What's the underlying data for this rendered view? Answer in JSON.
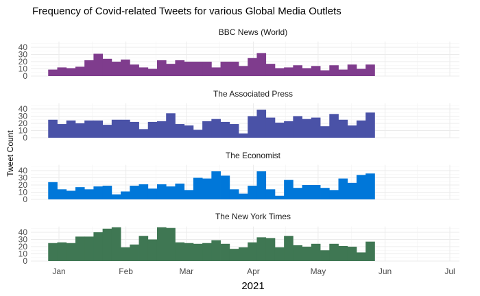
{
  "chart_data": {
    "type": "bar",
    "title": "Frequency of Covid-related Tweets for various Global Media Outlets",
    "xlabel": "2021",
    "ylabel": "Tweet Count",
    "x_ticks": [
      "Jan",
      "Feb",
      "Mar",
      "Apr",
      "May",
      "Jun",
      "Jul"
    ],
    "y_ticks": [
      0,
      10,
      20,
      30,
      40
    ],
    "ylim": [
      0,
      48
    ],
    "grid": true,
    "legend": "none",
    "x_start": "2020-12-27",
    "bin_days": 4.2,
    "panels": [
      {
        "name": "BBC News (World)",
        "color": "#7f3c8d",
        "values": [
          9,
          12,
          11,
          13,
          22,
          31,
          24,
          20,
          23,
          16,
          12,
          10,
          22,
          17,
          22,
          20,
          20,
          20,
          12,
          20,
          20,
          14,
          25,
          32,
          17,
          11,
          12,
          15,
          11,
          14,
          8,
          15,
          9,
          16,
          10,
          16
        ]
      },
      {
        "name": "The Associated Press",
        "color": "#4a52a7",
        "values": [
          25,
          19,
          24,
          20,
          24,
          24,
          18,
          25,
          25,
          22,
          12,
          22,
          23,
          34,
          19,
          17,
          11,
          23,
          26,
          22,
          19,
          6,
          30,
          39,
          28,
          21,
          23,
          30,
          26,
          28,
          16,
          33,
          25,
          17,
          24,
          35
        ]
      },
      {
        "name": "The Economist",
        "color": "#0077d9",
        "values": [
          24,
          14,
          12,
          17,
          14,
          18,
          19,
          7,
          11,
          19,
          21,
          15,
          21,
          18,
          22,
          13,
          30,
          29,
          39,
          33,
          14,
          8,
          19,
          39,
          14,
          5,
          27,
          16,
          20,
          20,
          16,
          13,
          29,
          23,
          34,
          36
        ]
      },
      {
        "name": "The New York Times",
        "color": "#3f7753",
        "values": [
          25,
          26,
          25,
          34,
          34,
          40,
          45,
          47,
          19,
          23,
          35,
          30,
          47,
          46,
          26,
          25,
          24,
          25,
          29,
          24,
          17,
          19,
          26,
          33,
          32,
          19,
          35,
          22,
          20,
          24,
          15,
          24,
          21,
          20,
          12,
          27
        ]
      }
    ]
  }
}
